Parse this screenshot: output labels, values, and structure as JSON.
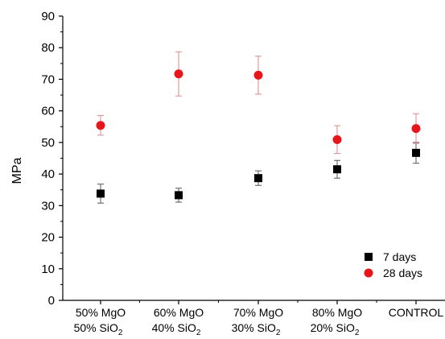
{
  "chart_data": {
    "type": "scatter",
    "title": "",
    "xlabel": "",
    "ylabel": "MPa",
    "ylim": [
      0,
      90
    ],
    "yticks": [
      0,
      10,
      20,
      30,
      40,
      50,
      60,
      70,
      80,
      90
    ],
    "grid": false,
    "legend_position": "bottom-right",
    "categories": [
      [
        "50% MgO",
        "50% SiO",
        "2"
      ],
      [
        "60% MgO",
        "40% SiO",
        "2"
      ],
      [
        "70% MgO",
        "30% SiO",
        "2"
      ],
      [
        "80% MgO",
        "20% SiO",
        "2"
      ],
      [
        "CONTROL",
        "",
        ""
      ]
    ],
    "series": [
      {
        "name": "7 days",
        "marker": "square",
        "color": "#000000",
        "error_color": "#555555",
        "values": [
          33.8,
          33.3,
          38.7,
          41.5,
          46.7
        ],
        "errors": [
          3.0,
          2.2,
          2.3,
          2.8,
          3.3
        ]
      },
      {
        "name": "28 days",
        "marker": "circle",
        "color": "#e8161b",
        "error_color": "#d98a8a",
        "values": [
          55.4,
          71.7,
          71.3,
          50.9,
          54.4
        ],
        "errors": [
          3.1,
          7.0,
          6.0,
          4.4,
          4.7
        ]
      }
    ]
  }
}
